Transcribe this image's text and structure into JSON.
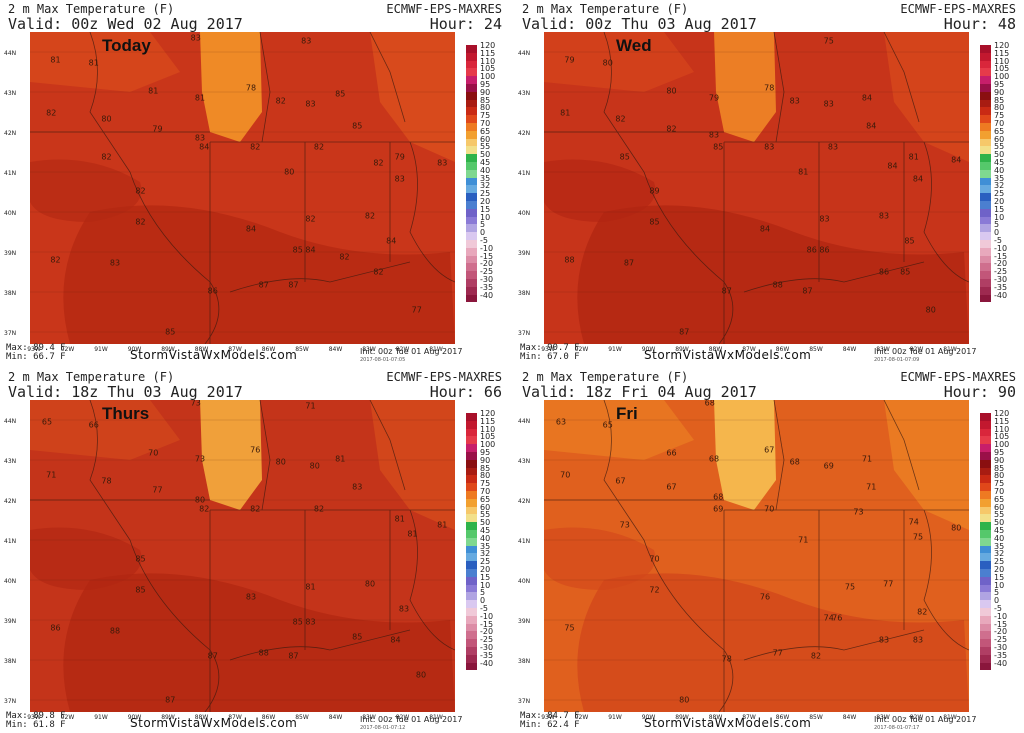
{
  "common": {
    "title": "2 m Max Temperature (F)",
    "model": "ECMWF-EPS-MAXRES",
    "site": "StormVistaWxModels.com",
    "init": "Init: 00z Tue 01 Aug 2017",
    "lat_labels": [
      "44N",
      "43N",
      "42N",
      "41N",
      "40N",
      "39N",
      "38N",
      "37N"
    ],
    "lon_labels": [
      "93W",
      "92W",
      "91W",
      "90W",
      "89W",
      "88W",
      "87W",
      "86W",
      "85W",
      "84W",
      "83W",
      "82W",
      "81W"
    ]
  },
  "legend": {
    "labels": [
      "120",
      "115",
      "110",
      "105",
      "100",
      "95",
      "90",
      "85",
      "80",
      "75",
      "70",
      "65",
      "60",
      "55",
      "50",
      "45",
      "40",
      "35",
      "32",
      "25",
      "20",
      "15",
      "10",
      "5",
      "0",
      "-5",
      "-10",
      "-15",
      "-20",
      "-25",
      "-30",
      "-35",
      "-40"
    ],
    "colors": [
      "#a8102a",
      "#c2182f",
      "#d9263b",
      "#e63a4a",
      "#c71e6a",
      "#9a1048",
      "#8a0f10",
      "#a81c12",
      "#c92a14",
      "#e0481a",
      "#ee7a22",
      "#f2a030",
      "#f6c86a",
      "#f2e08a",
      "#2fb34a",
      "#55c86b",
      "#7fd890",
      "#3f8fd6",
      "#66aae0",
      "#2a5fc0",
      "#4b7fd0",
      "#6f62c8",
      "#8a7ad6",
      "#b0a4e2",
      "#d9c8f0",
      "#f0c9d8",
      "#e8a8bc",
      "#dc8ca6",
      "#cf6f8e",
      "#c25679",
      "#b03e64",
      "#9e2950",
      "#8a163c"
    ]
  },
  "panels": [
    {
      "id": "today",
      "valid": "Valid: 00z Wed 02 Aug 2017",
      "hour": "Hour: 24",
      "day_label": "Today",
      "max": "Max: 89.4 F",
      "min": "Min: 66.7 F",
      "stamp": "2017-08-01-07:05",
      "temps": [
        {
          "v": "81",
          "x": 6,
          "y": 9
        },
        {
          "v": "81",
          "x": 15,
          "y": 10
        },
        {
          "v": "83",
          "x": 39,
          "y": 2
        },
        {
          "v": "83",
          "x": 65,
          "y": 3
        },
        {
          "v": "81",
          "x": 29,
          "y": 19
        },
        {
          "v": "81",
          "x": 40,
          "y": 21
        },
        {
          "v": "78",
          "x": 52,
          "y": 18
        },
        {
          "v": "82",
          "x": 59,
          "y": 22
        },
        {
          "v": "83",
          "x": 66,
          "y": 23
        },
        {
          "v": "85",
          "x": 73,
          "y": 20
        },
        {
          "v": "82",
          "x": 5,
          "y": 26
        },
        {
          "v": "80",
          "x": 18,
          "y": 28
        },
        {
          "v": "79",
          "x": 30,
          "y": 31
        },
        {
          "v": "85",
          "x": 77,
          "y": 30
        },
        {
          "v": "83",
          "x": 40,
          "y": 34
        },
        {
          "v": "84",
          "x": 41,
          "y": 37
        },
        {
          "v": "82",
          "x": 53,
          "y": 37
        },
        {
          "v": "82",
          "x": 18,
          "y": 40
        },
        {
          "v": "82",
          "x": 68,
          "y": 37
        },
        {
          "v": "79",
          "x": 87,
          "y": 40
        },
        {
          "v": "82",
          "x": 82,
          "y": 42
        },
        {
          "v": "83",
          "x": 87,
          "y": 47
        },
        {
          "v": "83",
          "x": 97,
          "y": 42
        },
        {
          "v": "80",
          "x": 61,
          "y": 45
        },
        {
          "v": "82",
          "x": 26,
          "y": 51
        },
        {
          "v": "82",
          "x": 26,
          "y": 61
        },
        {
          "v": "82",
          "x": 66,
          "y": 60
        },
        {
          "v": "82",
          "x": 80,
          "y": 59
        },
        {
          "v": "84",
          "x": 52,
          "y": 63
        },
        {
          "v": "84",
          "x": 85,
          "y": 67
        },
        {
          "v": "85",
          "x": 63,
          "y": 70
        },
        {
          "v": "84",
          "x": 66,
          "y": 70
        },
        {
          "v": "82",
          "x": 6,
          "y": 73
        },
        {
          "v": "83",
          "x": 20,
          "y": 74
        },
        {
          "v": "82",
          "x": 74,
          "y": 72
        },
        {
          "v": "82",
          "x": 82,
          "y": 77
        },
        {
          "v": "87",
          "x": 55,
          "y": 81
        },
        {
          "v": "87",
          "x": 62,
          "y": 81
        },
        {
          "v": "86",
          "x": 43,
          "y": 83
        },
        {
          "v": "77",
          "x": 91,
          "y": 89
        },
        {
          "v": "85",
          "x": 33,
          "y": 96
        }
      ]
    },
    {
      "id": "wed",
      "valid": "Valid: 00z Thu 03 Aug 2017",
      "hour": "Hour: 48",
      "day_label": "Wed",
      "max": "Max: 90.7 F",
      "min": "Min: 67.0 F",
      "stamp": "2017-08-01-07:09",
      "temps": [
        {
          "v": "79",
          "x": 6,
          "y": 9
        },
        {
          "v": "80",
          "x": 15,
          "y": 10
        },
        {
          "v": "75",
          "x": 67,
          "y": 3
        },
        {
          "v": "80",
          "x": 30,
          "y": 19
        },
        {
          "v": "79",
          "x": 40,
          "y": 21
        },
        {
          "v": "78",
          "x": 53,
          "y": 18
        },
        {
          "v": "83",
          "x": 59,
          "y": 22
        },
        {
          "v": "83",
          "x": 67,
          "y": 23
        },
        {
          "v": "84",
          "x": 76,
          "y": 21
        },
        {
          "v": "81",
          "x": 5,
          "y": 26
        },
        {
          "v": "82",
          "x": 18,
          "y": 28
        },
        {
          "v": "82",
          "x": 30,
          "y": 31
        },
        {
          "v": "84",
          "x": 77,
          "y": 30
        },
        {
          "v": "83",
          "x": 40,
          "y": 33
        },
        {
          "v": "85",
          "x": 41,
          "y": 37
        },
        {
          "v": "83",
          "x": 53,
          "y": 37
        },
        {
          "v": "85",
          "x": 19,
          "y": 40
        },
        {
          "v": "83",
          "x": 68,
          "y": 37
        },
        {
          "v": "81",
          "x": 87,
          "y": 40
        },
        {
          "v": "84",
          "x": 82,
          "y": 43
        },
        {
          "v": "84",
          "x": 88,
          "y": 47
        },
        {
          "v": "84",
          "x": 97,
          "y": 41
        },
        {
          "v": "81",
          "x": 61,
          "y": 45
        },
        {
          "v": "89",
          "x": 26,
          "y": 51
        },
        {
          "v": "85",
          "x": 26,
          "y": 61
        },
        {
          "v": "83",
          "x": 66,
          "y": 60
        },
        {
          "v": "83",
          "x": 80,
          "y": 59
        },
        {
          "v": "84",
          "x": 52,
          "y": 63
        },
        {
          "v": "85",
          "x": 86,
          "y": 67
        },
        {
          "v": "86",
          "x": 63,
          "y": 70
        },
        {
          "v": "86",
          "x": 66,
          "y": 70
        },
        {
          "v": "88",
          "x": 6,
          "y": 73
        },
        {
          "v": "87",
          "x": 20,
          "y": 74
        },
        {
          "v": "86",
          "x": 80,
          "y": 77
        },
        {
          "v": "85",
          "x": 85,
          "y": 77
        },
        {
          "v": "88",
          "x": 55,
          "y": 81
        },
        {
          "v": "87",
          "x": 62,
          "y": 83
        },
        {
          "v": "87",
          "x": 43,
          "y": 83
        },
        {
          "v": "80",
          "x": 91,
          "y": 89
        },
        {
          "v": "87",
          "x": 33,
          "y": 96
        }
      ]
    },
    {
      "id": "thurs",
      "valid": "Valid: 18z Thu 03 Aug 2017",
      "hour": "Hour: 66",
      "day_label": "Thurs",
      "max": "Max: 89.8 F",
      "min": "Min: 61.8 F",
      "stamp": "2017-08-01-07:12",
      "temps": [
        {
          "v": "65",
          "x": 4,
          "y": 7
        },
        {
          "v": "66",
          "x": 15,
          "y": 8
        },
        {
          "v": "73",
          "x": 39,
          "y": 1
        },
        {
          "v": "71",
          "x": 66,
          "y": 2
        },
        {
          "v": "70",
          "x": 29,
          "y": 17
        },
        {
          "v": "73",
          "x": 40,
          "y": 19
        },
        {
          "v": "76",
          "x": 53,
          "y": 16
        },
        {
          "v": "80",
          "x": 59,
          "y": 20
        },
        {
          "v": "80",
          "x": 67,
          "y": 21
        },
        {
          "v": "81",
          "x": 73,
          "y": 19
        },
        {
          "v": "71",
          "x": 5,
          "y": 24
        },
        {
          "v": "78",
          "x": 18,
          "y": 26
        },
        {
          "v": "77",
          "x": 30,
          "y": 29
        },
        {
          "v": "83",
          "x": 77,
          "y": 28
        },
        {
          "v": "80",
          "x": 40,
          "y": 32
        },
        {
          "v": "82",
          "x": 41,
          "y": 35
        },
        {
          "v": "82",
          "x": 53,
          "y": 35
        },
        {
          "v": "82",
          "x": 68,
          "y": 35
        },
        {
          "v": "81",
          "x": 87,
          "y": 38
        },
        {
          "v": "81",
          "x": 97,
          "y": 40
        },
        {
          "v": "81",
          "x": 90,
          "y": 43
        },
        {
          "v": "85",
          "x": 26,
          "y": 51
        },
        {
          "v": "85",
          "x": 26,
          "y": 61
        },
        {
          "v": "83",
          "x": 52,
          "y": 63
        },
        {
          "v": "81",
          "x": 66,
          "y": 60
        },
        {
          "v": "80",
          "x": 80,
          "y": 59
        },
        {
          "v": "83",
          "x": 88,
          "y": 67
        },
        {
          "v": "86",
          "x": 6,
          "y": 73
        },
        {
          "v": "88",
          "x": 20,
          "y": 74
        },
        {
          "v": "85",
          "x": 63,
          "y": 71
        },
        {
          "v": "83",
          "x": 66,
          "y": 71
        },
        {
          "v": "85",
          "x": 77,
          "y": 76
        },
        {
          "v": "84",
          "x": 86,
          "y": 77
        },
        {
          "v": "88",
          "x": 55,
          "y": 81
        },
        {
          "v": "87",
          "x": 62,
          "y": 82
        },
        {
          "v": "87",
          "x": 43,
          "y": 82
        },
        {
          "v": "80",
          "x": 92,
          "y": 88
        },
        {
          "v": "87",
          "x": 33,
          "y": 96
        }
      ]
    },
    {
      "id": "fri",
      "valid": "Valid: 18z Fri 04 Aug 2017",
      "hour": "Hour: 90",
      "day_label": "Fri",
      "max": "Max: 84.7 F",
      "min": "Min: 62.4 F",
      "stamp": "2017-08-01-07:17",
      "temps": [
        {
          "v": "63",
          "x": 4,
          "y": 7
        },
        {
          "v": "65",
          "x": 15,
          "y": 8
        },
        {
          "v": "68",
          "x": 39,
          "y": 1
        },
        {
          "v": "66",
          "x": 30,
          "y": 17
        },
        {
          "v": "68",
          "x": 40,
          "y": 19
        },
        {
          "v": "67",
          "x": 53,
          "y": 16
        },
        {
          "v": "68",
          "x": 59,
          "y": 20
        },
        {
          "v": "69",
          "x": 67,
          "y": 21
        },
        {
          "v": "71",
          "x": 76,
          "y": 19
        },
        {
          "v": "70",
          "x": 5,
          "y": 24
        },
        {
          "v": "67",
          "x": 18,
          "y": 26
        },
        {
          "v": "67",
          "x": 30,
          "y": 28
        },
        {
          "v": "71",
          "x": 77,
          "y": 28
        },
        {
          "v": "68",
          "x": 41,
          "y": 31
        },
        {
          "v": "69",
          "x": 41,
          "y": 35
        },
        {
          "v": "70",
          "x": 53,
          "y": 35
        },
        {
          "v": "73",
          "x": 74,
          "y": 36
        },
        {
          "v": "73",
          "x": 19,
          "y": 40
        },
        {
          "v": "74",
          "x": 87,
          "y": 39
        },
        {
          "v": "75",
          "x": 88,
          "y": 44
        },
        {
          "v": "80",
          "x": 97,
          "y": 41
        },
        {
          "v": "71",
          "x": 61,
          "y": 45
        },
        {
          "v": "70",
          "x": 26,
          "y": 51
        },
        {
          "v": "72",
          "x": 26,
          "y": 61
        },
        {
          "v": "76",
          "x": 52,
          "y": 63
        },
        {
          "v": "75",
          "x": 72,
          "y": 60
        },
        {
          "v": "77",
          "x": 81,
          "y": 59
        },
        {
          "v": "82",
          "x": 89,
          "y": 68
        },
        {
          "v": "74",
          "x": 67,
          "y": 70
        },
        {
          "v": "76",
          "x": 69,
          "y": 70
        },
        {
          "v": "75",
          "x": 6,
          "y": 73
        },
        {
          "v": "83",
          "x": 80,
          "y": 77
        },
        {
          "v": "83",
          "x": 88,
          "y": 77
        },
        {
          "v": "78",
          "x": 43,
          "y": 83
        },
        {
          "v": "77",
          "x": 55,
          "y": 81
        },
        {
          "v": "82",
          "x": 64,
          "y": 82
        },
        {
          "v": "80",
          "x": 33,
          "y": 96
        }
      ]
    }
  ]
}
